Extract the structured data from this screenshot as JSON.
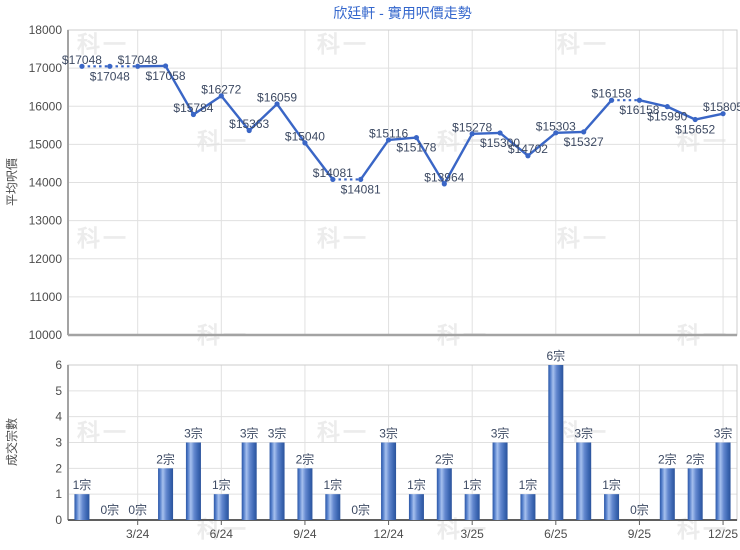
{
  "chart": {
    "watermark_text": "科一"
  },
  "chart_data": [
    {
      "type": "line",
      "title": "欣廷軒 - 實用呎價走勢",
      "ylabel": "平均呎價",
      "xlabel": "",
      "ylim": [
        10000,
        18000
      ],
      "ytick_step": 1000,
      "ytick_labels": [
        "18000",
        "17000",
        "16000",
        "15000",
        "14000",
        "13000",
        "12000",
        "11000",
        "10000"
      ],
      "grid": true,
      "legend": "none",
      "x_points": 24,
      "xtick_labels": [
        "3/24",
        "6/24",
        "9/24",
        "12/24",
        "3/25",
        "6/25",
        "9/25",
        "12/25"
      ],
      "xtick_point_index": [
        3,
        6,
        9,
        12,
        15,
        18,
        21,
        24
      ],
      "values": [
        17048,
        17048,
        17048,
        17058,
        15784,
        16272,
        15363,
        16059,
        15040,
        14081,
        14081,
        15116,
        15178,
        13964,
        15278,
        15300,
        14702,
        15303,
        15327,
        16158,
        16158,
        15990,
        15652,
        15805
      ],
      "point_labels": [
        "$17048",
        "$17048",
        "$17048",
        "$17058",
        "$15784",
        "$16272",
        "$15363",
        "$16059",
        "$15040",
        "$14081",
        "$14081",
        "$15116",
        "$15178",
        "$13964",
        "$15278",
        "$15300",
        "$14702",
        "$15303",
        "$15327",
        "$16158",
        "$16158",
        "$15990",
        "$15652",
        "$15805"
      ],
      "label_placement": [
        "above",
        "below",
        "above",
        "below",
        "above",
        "above",
        "above",
        "above",
        "above",
        "above",
        "below",
        "above",
        "below",
        "above",
        "above",
        "below",
        "above",
        "above",
        "below",
        "above",
        "below",
        "below",
        "below",
        "above"
      ],
      "dotted_segments": [
        [
          0,
          1
        ],
        [
          1,
          2
        ],
        [
          9,
          10
        ],
        [
          19,
          20
        ]
      ]
    },
    {
      "type": "bar",
      "title": "",
      "ylabel": "成交宗數",
      "xlabel": "",
      "ylim": [
        0,
        6
      ],
      "ytick_step": 1,
      "ytick_labels": [
        "6",
        "5",
        "4",
        "3",
        "2",
        "1",
        "0"
      ],
      "grid": true,
      "legend": "none",
      "x_points": 24,
      "xtick_labels": [
        "3/24",
        "6/24",
        "9/24",
        "12/24",
        "3/25",
        "6/25",
        "9/25",
        "12/25"
      ],
      "xtick_point_index": [
        3,
        6,
        9,
        12,
        15,
        18,
        21,
        24
      ],
      "values": [
        1,
        0,
        0,
        2,
        3,
        1,
        3,
        3,
        2,
        1,
        0,
        3,
        1,
        2,
        1,
        3,
        1,
        6,
        3,
        1,
        0,
        2,
        2,
        3
      ],
      "bar_labels": [
        "1宗",
        "0宗",
        "0宗",
        "2宗",
        "3宗",
        "1宗",
        "3宗",
        "3宗",
        "2宗",
        "1宗",
        "0宗",
        "3宗",
        "1宗",
        "2宗",
        "1宗",
        "3宗",
        "1宗",
        "6宗",
        "3宗",
        "1宗",
        "0宗",
        "2宗",
        "2宗",
        "3宗"
      ]
    }
  ],
  "colors": {
    "title": "#3366cc",
    "line": "#3a66c6",
    "marker": "#3a66c6",
    "point_label": "#3d4a63",
    "bar_label": "#3d4a63",
    "tick_label": "#4d4d4d",
    "axis_title": "#4d4d4d",
    "grid": "#e0e0e0",
    "plot_border": "#cccccc",
    "axis": "#a3a3a3",
    "bar_baseline": "#5f5f5f",
    "watermark": "#ececec",
    "bar_gradient": [
      [
        "0%",
        "#2d57a4"
      ],
      [
        "12%",
        "#4d79c7"
      ],
      [
        "32%",
        "#a6c0ee"
      ],
      [
        "55%",
        "#6388cf"
      ],
      [
        "82%",
        "#3b66b2"
      ],
      [
        "100%",
        "#2b539b"
      ]
    ]
  }
}
